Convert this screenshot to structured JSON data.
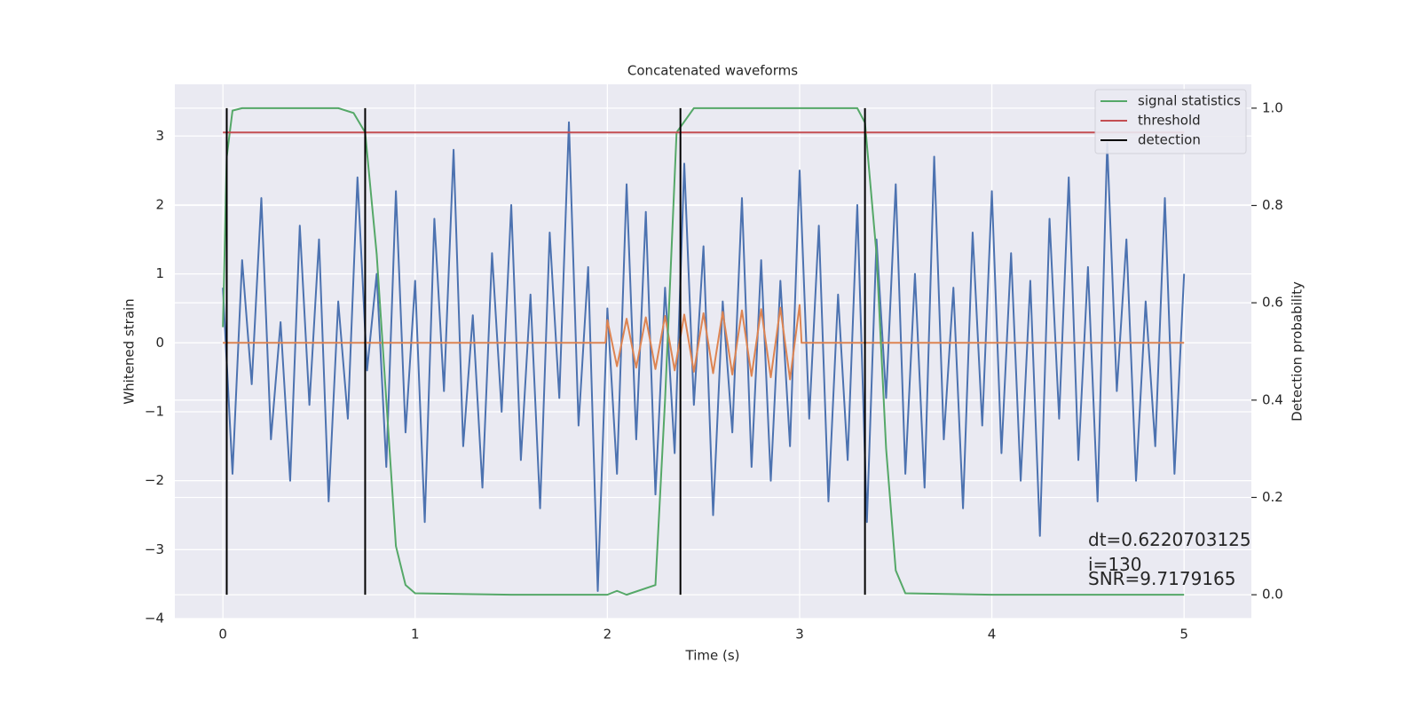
{
  "chart_data": {
    "type": "line",
    "title": "Concatenated waveforms",
    "xlabel": "Time (s)",
    "ylabel": "Whitened strain",
    "y2label": "Detection probability",
    "xlim": [
      -0.25,
      5.35
    ],
    "xticks": [
      0,
      1,
      2,
      3,
      4,
      5
    ],
    "ylim": [
      -4.0,
      3.75
    ],
    "yticks": [
      {
        "value": -4,
        "label": "−4"
      },
      {
        "value": -3,
        "label": "−3"
      },
      {
        "value": -2,
        "label": "−2"
      },
      {
        "value": -1,
        "label": "−1"
      },
      0,
      1,
      2,
      3
    ],
    "y2lim": [
      -0.049,
      1.049
    ],
    "y2ticks": [
      {
        "value": 0,
        "label": "0.0"
      },
      0.2,
      0.4,
      0.6,
      0.8,
      {
        "value": 1,
        "label": "1.0"
      }
    ],
    "grid": true,
    "legend": "upper right",
    "annotations": [
      "dt=0.6220703125",
      " i=130",
      "SNR=9.7179165"
    ],
    "series": [
      {
        "color": "#4c72b0",
        "x": [
          0,
          0.05,
          0.1,
          0.15,
          0.2,
          0.25,
          0.3,
          0.35,
          0.4,
          0.45,
          0.5,
          0.55,
          0.6,
          0.65,
          0.7,
          0.75,
          0.8,
          0.85,
          0.9,
          0.95,
          1,
          1.05,
          1.1,
          1.15,
          1.2,
          1.25,
          1.3,
          1.35,
          1.4,
          1.45,
          1.5,
          1.55,
          1.6,
          1.65,
          1.7,
          1.75,
          1.8,
          1.85,
          1.9,
          1.95,
          2,
          2.05,
          2.1,
          2.15,
          2.2,
          2.25,
          2.3,
          2.35,
          2.4,
          2.45,
          2.5,
          2.55,
          2.6,
          2.65,
          2.7,
          2.75,
          2.8,
          2.85,
          2.9,
          2.95,
          3,
          3.05,
          3.1,
          3.15,
          3.2,
          3.25,
          3.3,
          3.35,
          3.4,
          3.45,
          3.5,
          3.55,
          3.6,
          3.65,
          3.7,
          3.75,
          3.8,
          3.85,
          3.9,
          3.95,
          4,
          4.05,
          4.1,
          4.15,
          4.2,
          4.25,
          4.3,
          4.35,
          4.4,
          4.45,
          4.5,
          4.55,
          4.6,
          4.65,
          4.7,
          4.75,
          4.8,
          4.85,
          4.9,
          4.95,
          5
        ],
        "values": [
          0.8,
          -1.9,
          1.2,
          -0.6,
          2.1,
          -1.4,
          0.3,
          -2.0,
          1.7,
          -0.9,
          1.5,
          -2.3,
          0.6,
          -1.1,
          2.4,
          -0.4,
          1.0,
          -1.8,
          2.2,
          -1.3,
          0.9,
          -2.6,
          1.8,
          -0.7,
          2.8,
          -1.5,
          0.4,
          -2.1,
          1.3,
          -1.0,
          2.0,
          -1.7,
          0.7,
          -2.4,
          1.6,
          -0.8,
          3.2,
          -1.2,
          1.1,
          -3.6,
          0.5,
          -1.9,
          2.3,
          -1.4,
          1.9,
          -2.2,
          0.8,
          -1.6,
          2.6,
          -0.9,
          1.4,
          -2.5,
          0.6,
          -1.3,
          2.1,
          -1.8,
          1.2,
          -2.0,
          0.9,
          -1.5,
          2.5,
          -1.1,
          1.7,
          -2.3,
          0.7,
          -1.7,
          2.0,
          -2.6,
          1.5,
          -0.8,
          2.3,
          -1.9,
          1.0,
          -2.1,
          2.7,
          -1.4,
          0.8,
          -2.4,
          1.6,
          -1.2,
          2.2,
          -1.6,
          1.3,
          -2.0,
          0.9,
          -2.8,
          1.8,
          -1.1,
          2.4,
          -1.7,
          1.1,
          -2.3,
          2.9,
          -0.7,
          1.5,
          -2.0,
          0.6,
          -1.5,
          2.1,
          -1.9,
          1.0
        ]
      },
      {
        "color": "#dd8452",
        "x": [
          0,
          1.99,
          2,
          2.05,
          2.1,
          2.15,
          2.2,
          2.25,
          2.3,
          2.35,
          2.4,
          2.45,
          2.5,
          2.55,
          2.6,
          2.65,
          2.7,
          2.75,
          2.8,
          2.85,
          2.9,
          2.95,
          3,
          3.01,
          5
        ],
        "values": [
          0,
          0,
          0.33,
          -0.34,
          0.35,
          -0.36,
          0.37,
          -0.38,
          0.39,
          -0.4,
          0.41,
          -0.42,
          0.43,
          -0.44,
          0.45,
          -0.46,
          0.47,
          -0.48,
          0.49,
          -0.5,
          0.51,
          -0.53,
          0.55,
          0,
          0
        ]
      },
      {
        "name": "signal statistics",
        "color": "#55a868",
        "axis": "y2",
        "x": [
          0,
          0.02,
          0.05,
          0.1,
          0.6,
          0.68,
          0.74,
          0.8,
          0.85,
          0.9,
          0.95,
          1.0,
          1.5,
          2.0,
          2.05,
          2.1,
          2.25,
          2.3,
          2.36,
          2.45,
          3.0,
          3.3,
          3.34,
          3.4,
          3.45,
          3.5,
          3.55,
          4.0,
          5.0
        ],
        "values": [
          0.55,
          0.9,
          0.995,
          1.0,
          1.0,
          0.99,
          0.95,
          0.7,
          0.4,
          0.1,
          0.02,
          0.003,
          0,
          0,
          0.008,
          0,
          0.02,
          0.4,
          0.95,
          1.0,
          1.0,
          1.0,
          0.97,
          0.7,
          0.3,
          0.05,
          0.003,
          0,
          0
        ]
      },
      {
        "name": "threshold",
        "color": "#c44e52",
        "axis": "y2",
        "x": [
          0,
          5
        ],
        "values": [
          0.95,
          0.95
        ]
      },
      {
        "name": "detection",
        "color": "#000000",
        "axis": "y2",
        "mark": "vline",
        "x": [
          0.02,
          0.74,
          2.38,
          3.34
        ],
        "values": [
          1,
          1,
          1,
          1
        ]
      }
    ]
  }
}
